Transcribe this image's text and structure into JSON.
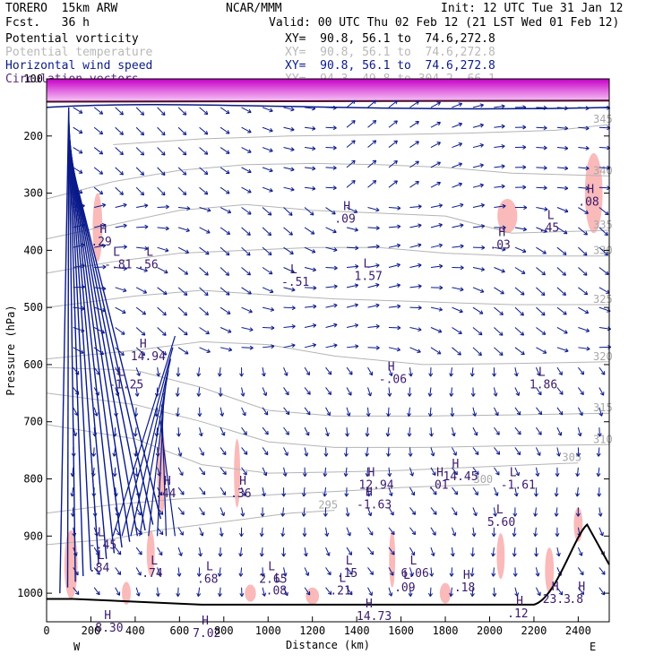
{
  "header": {
    "model": "TORERO  15km ARW",
    "org": "NCAR/MMM",
    "init": "Init: 12 UTC Tue 31 Jan 12",
    "fcst": "Fcst.   36 h",
    "valid": "Valid: 00 UTC Thu 02 Feb 12 (21 LST Wed 01 Feb 12)",
    "fields": [
      {
        "name": "Potential vorticity",
        "xy": "XY=  90.8, 56.1 to  74.6,272.8"
      },
      {
        "name": "Potential temperature",
        "xy": "XY=  90.8, 56.1 to  74.6,272.8"
      },
      {
        "name": "Horizontal wind speed",
        "xy": "XY=  90.8, 56.1 to  74.6,272.8"
      },
      {
        "name": "Circulation vectors",
        "xy": "XY=  94.3, 49.8 to 304.2, 66.1"
      }
    ]
  },
  "chart_data": {
    "type": "cross-section",
    "xlabel": "Distance (km)",
    "ylabel": "Pressure (hPa)",
    "xlim": [
      0,
      2540
    ],
    "ylim": [
      1050,
      100
    ],
    "x_ticks": [
      0,
      200,
      400,
      600,
      800,
      1000,
      1200,
      1400,
      1600,
      1800,
      2000,
      2200,
      2400
    ],
    "y_ticks": [
      100,
      200,
      300,
      400,
      500,
      600,
      700,
      800,
      900,
      1000
    ],
    "end_labels": {
      "left": "W",
      "right": "E"
    },
    "theta_contours": [
      {
        "label": "295",
        "pts": [
          [
            0,
            915
          ],
          [
            300,
            905
          ],
          [
            500,
            890
          ],
          [
            700,
            880
          ],
          [
            900,
            870
          ],
          [
            1100,
            860
          ],
          [
            1300,
            855
          ]
        ]
      },
      {
        "label": "300",
        "pts": [
          [
            0,
            860
          ],
          [
            300,
            845
          ],
          [
            600,
            835
          ],
          [
            900,
            830
          ],
          [
            1150,
            825
          ],
          [
            1400,
            820
          ],
          [
            1600,
            815
          ],
          [
            1800,
            812
          ],
          [
            2000,
            810
          ]
        ]
      },
      {
        "label": "305",
        "pts": [
          [
            0,
            705
          ],
          [
            400,
            730
          ],
          [
            700,
            775
          ],
          [
            1000,
            790
          ],
          [
            1300,
            788
          ],
          [
            1600,
            785
          ],
          [
            1900,
            780
          ],
          [
            2200,
            775
          ],
          [
            2400,
            772
          ]
        ]
      },
      {
        "label": "310",
        "pts": [
          [
            0,
            650
          ],
          [
            400,
            670
          ],
          [
            700,
            700
          ],
          [
            1000,
            735
          ],
          [
            1300,
            745
          ],
          [
            1700,
            745
          ],
          [
            2100,
            742
          ],
          [
            2540,
            740
          ]
        ]
      },
      {
        "label": "315",
        "pts": [
          [
            0,
            605
          ],
          [
            400,
            610
          ],
          [
            700,
            640
          ],
          [
            1000,
            680
          ],
          [
            1300,
            690
          ],
          [
            1700,
            690
          ],
          [
            2100,
            688
          ],
          [
            2540,
            685
          ]
        ]
      },
      {
        "label": "320",
        "pts": [
          [
            0,
            590
          ],
          [
            400,
            575
          ],
          [
            700,
            560
          ],
          [
            1000,
            565
          ],
          [
            1300,
            585
          ],
          [
            1700,
            600
          ],
          [
            2100,
            598
          ],
          [
            2540,
            595
          ]
        ]
      },
      {
        "label": "325",
        "pts": [
          [
            0,
            500
          ],
          [
            400,
            480
          ],
          [
            700,
            470
          ],
          [
            1000,
            478
          ],
          [
            1300,
            485
          ],
          [
            1700,
            490
          ],
          [
            2100,
            495
          ],
          [
            2540,
            495
          ]
        ]
      },
      {
        "label": "330",
        "pts": [
          [
            0,
            440
          ],
          [
            300,
            420
          ],
          [
            600,
            405
          ],
          [
            900,
            400
          ],
          [
            1200,
            395
          ],
          [
            1500,
            395
          ],
          [
            1800,
            405
          ],
          [
            2100,
            410
          ],
          [
            2540,
            410
          ]
        ]
      },
      {
        "label": "335",
        "pts": [
          [
            0,
            380
          ],
          [
            300,
            355
          ],
          [
            600,
            330
          ],
          [
            900,
            320
          ],
          [
            1200,
            330
          ],
          [
            1500,
            335
          ],
          [
            1800,
            340
          ],
          [
            2100,
            370
          ],
          [
            2540,
            365
          ]
        ]
      },
      {
        "label": "340",
        "pts": [
          [
            0,
            310
          ],
          [
            300,
            280
          ],
          [
            600,
            260
          ],
          [
            900,
            250
          ],
          [
            1200,
            248
          ],
          [
            1500,
            250
          ],
          [
            1800,
            255
          ],
          [
            2100,
            265
          ],
          [
            2540,
            270
          ]
        ]
      },
      {
        "label": "345",
        "pts": [
          [
            300,
            215
          ],
          [
            700,
            205
          ],
          [
            1100,
            200
          ],
          [
            1500,
            198
          ],
          [
            1900,
            195
          ],
          [
            2300,
            190
          ],
          [
            2540,
            180
          ]
        ]
      }
    ],
    "pv_patches": [
      [
        230,
        360,
        22,
        60
      ],
      [
        2470,
        300,
        40,
        70
      ],
      [
        2080,
        340,
        45,
        30
      ],
      [
        520,
        790,
        20,
        70
      ],
      [
        860,
        790,
        14,
        60
      ],
      [
        110,
        950,
        30,
        60
      ],
      [
        470,
        930,
        18,
        40
      ],
      [
        1560,
        940,
        14,
        50
      ],
      [
        2050,
        935,
        18,
        40
      ],
      [
        2400,
        880,
        20,
        30
      ],
      [
        360,
        1000,
        20,
        20
      ],
      [
        920,
        1000,
        25,
        15
      ],
      [
        1200,
        1005,
        30,
        15
      ],
      [
        1800,
        1000,
        25,
        18
      ],
      [
        2270,
        960,
        20,
        40
      ]
    ],
    "labels": [
      {
        "k": "L",
        "x": 300,
        "y": 410,
        "v": "-.81"
      },
      {
        "k": "L",
        "x": 450,
        "y": 410,
        "v": ".56"
      },
      {
        "k": "H",
        "x": 240,
        "y": 370,
        "v": ".29"
      },
      {
        "k": "H",
        "x": 1340,
        "y": 330,
        "v": ".09"
      },
      {
        "k": "L",
        "x": 1100,
        "y": 440,
        "v": "-.51"
      },
      {
        "k": "L",
        "x": 1430,
        "y": 430,
        "v": "1.57"
      },
      {
        "k": "H",
        "x": 2040,
        "y": 375,
        "v": ".03"
      },
      {
        "k": "L",
        "x": 2260,
        "y": 345,
        "v": ".45"
      },
      {
        "k": "H",
        "x": 2440,
        "y": 300,
        "v": ".08"
      },
      {
        "k": "H",
        "x": 420,
        "y": 570,
        "v": "14.94"
      },
      {
        "k": "L",
        "x": 320,
        "y": 620,
        "v": "-1.25"
      },
      {
        "k": "H",
        "x": 1540,
        "y": 610,
        "v": "-.06"
      },
      {
        "k": "L",
        "x": 2220,
        "y": 620,
        "v": "1.86"
      },
      {
        "k": "H",
        "x": 1830,
        "y": 780,
        "v": "14.45"
      },
      {
        "k": "H",
        "x": 1450,
        "y": 795,
        "v": "12.94"
      },
      {
        "k": "H",
        "x": 1760,
        "y": 795,
        "v": ".01"
      },
      {
        "k": "L",
        "x": 2090,
        "y": 795,
        "v": "-1.61"
      },
      {
        "k": "H",
        "x": 530,
        "y": 810,
        "v": ".44"
      },
      {
        "k": "H",
        "x": 870,
        "y": 810,
        "v": ".36"
      },
      {
        "k": "H",
        "x": 1440,
        "y": 830,
        "v": "-1.63"
      },
      {
        "k": "L",
        "x": 2030,
        "y": 860,
        "v": "5.60"
      },
      {
        "k": "L",
        "x": 230,
        "y": 900,
        "v": "-.45"
      },
      {
        "k": "L",
        "x": 230,
        "y": 940,
        "v": ".84"
      },
      {
        "k": "L",
        "x": 470,
        "y": 950,
        "v": ".74"
      },
      {
        "k": "L",
        "x": 720,
        "y": 960,
        "v": ".68"
      },
      {
        "k": "L",
        "x": 1000,
        "y": 960,
        "v": "2.65"
      },
      {
        "k": "L",
        "x": 1030,
        "y": 980,
        "v": ".08"
      },
      {
        "k": "L",
        "x": 1350,
        "y": 950,
        "v": ".15"
      },
      {
        "k": "L",
        "x": 1320,
        "y": 980,
        "v": ".21"
      },
      {
        "k": "L",
        "x": 1640,
        "y": 950,
        "v": "6.06"
      },
      {
        "k": "L",
        "x": 1610,
        "y": 975,
        "v": ".09"
      },
      {
        "k": "H",
        "x": 1880,
        "y": 975,
        "v": ".18"
      },
      {
        "k": "H",
        "x": 1440,
        "y": 1025,
        "v": "14.73"
      },
      {
        "k": "H",
        "x": 2120,
        "y": 1020,
        "v": ".12"
      },
      {
        "k": "H",
        "x": 2280,
        "y": 995,
        "v": "23.3"
      },
      {
        "k": "H",
        "x": 2400,
        "y": 995,
        "v": ".8"
      },
      {
        "k": "H",
        "x": 260,
        "y": 1045,
        "v": "8.30"
      },
      {
        "k": "H",
        "x": 700,
        "y": 1055,
        "v": "7.02"
      }
    ]
  }
}
